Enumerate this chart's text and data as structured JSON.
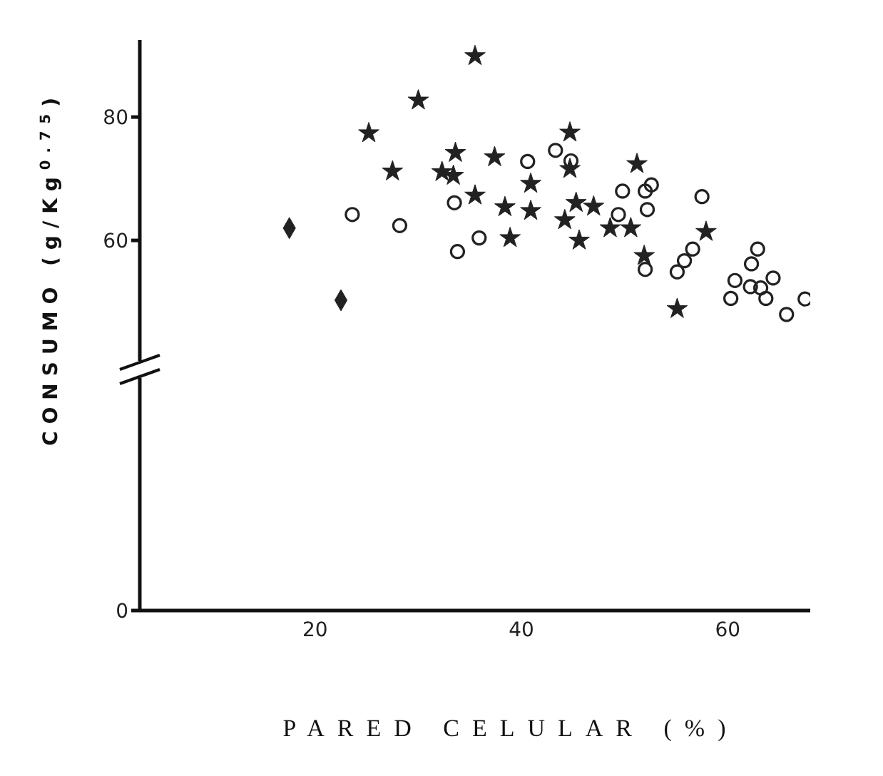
{
  "chart_data": {
    "type": "scatter",
    "xlabel": "PARED CELULAR (%)",
    "ylabel": "CONSUMO (g/Kg$^{0.75}$)",
    "xlim": [
      3,
      68
    ],
    "xticks": [
      20,
      40,
      60
    ],
    "ylim": [
      0,
      92.5
    ],
    "yticks": [
      0,
      60,
      80
    ],
    "series": [
      {
        "color": "#222222",
        "marker": "star",
        "x": [
          35.5,
          30.0,
          25.2,
          27.5,
          33.6,
          37.4,
          32.3,
          33.4,
          35.5,
          38.4,
          40.9,
          40.9,
          44.7,
          44.7,
          51.2,
          45.3,
          47.0,
          44.2,
          48.6,
          50.6,
          45.6,
          57.9,
          51.9,
          55.1,
          38.9
        ],
        "values": [
          89.9,
          82.7,
          77.4,
          71.2,
          74.2,
          73.5,
          71.1,
          70.5,
          67.3,
          65.4,
          64.8,
          69.2,
          77.5,
          71.6,
          72.4,
          66.1,
          65.5,
          63.3,
          62.0,
          62.0,
          60.0,
          61.4,
          57.5,
          48.9,
          60.4
        ]
      },
      {
        "color": "#222222",
        "marker": "circle",
        "x": [
          43.3,
          40.6,
          44.8,
          49.8,
          52.0,
          52.6,
          57.5,
          49.4,
          52.2,
          52.0,
          56.6,
          55.8,
          55.1,
          62.9,
          62.3,
          60.7,
          64.4,
          62.2,
          63.2,
          60.3,
          63.7,
          67.5,
          65.7,
          23.6,
          28.2,
          33.5,
          35.9,
          33.8
        ],
        "values": [
          74.6,
          72.8,
          72.9,
          68.0,
          68.0,
          69.0,
          67.1,
          64.2,
          65.0,
          55.3,
          58.6,
          56.7,
          54.9,
          58.6,
          56.2,
          53.5,
          53.9,
          52.5,
          52.3,
          50.6,
          50.6,
          50.5,
          48.0,
          64.2,
          62.4,
          66.1,
          60.4,
          58.2
        ]
      },
      {
        "color": "#222222",
        "marker": "diamond",
        "x": [
          17.5,
          22.5
        ],
        "values": [
          62.0,
          50.3
        ]
      }
    ]
  }
}
